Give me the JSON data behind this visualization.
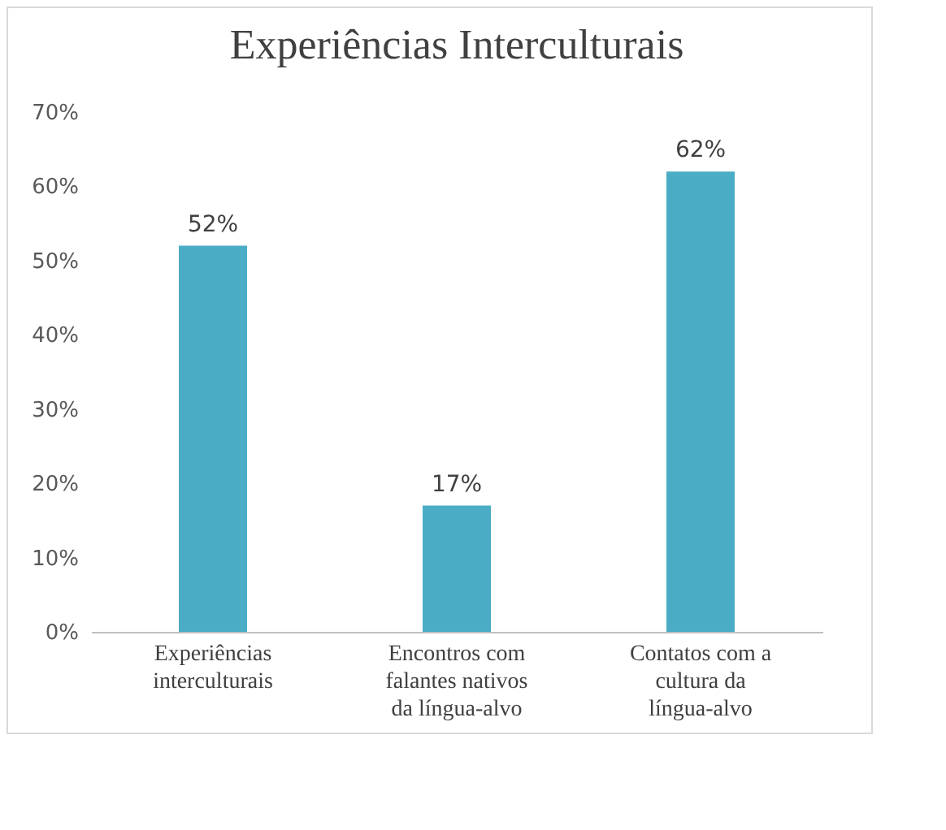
{
  "chart_data": {
    "type": "bar",
    "title": "Experiências Interculturais",
    "categories": [
      "Experiências interculturais",
      "Encontros com falantes nativos da língua-alvo",
      "Contatos com a cultura da língua-alvo"
    ],
    "values": [
      52,
      17,
      62
    ],
    "color": "#4bacc6",
    "value_labels": [
      "52%",
      "17%",
      "62%"
    ],
    "ylim": [
      0,
      70
    ],
    "yticks": [
      {
        "value": 0,
        "label": "0%"
      },
      {
        "value": 10,
        "label": "10%"
      },
      {
        "value": 20,
        "label": "20%"
      },
      {
        "value": 30,
        "label": "30%"
      },
      {
        "value": 40,
        "label": "40%"
      },
      {
        "value": 50,
        "label": "50%"
      },
      {
        "value": 60,
        "label": "60%"
      },
      {
        "value": 70,
        "label": "70%"
      }
    ],
    "grid": false
  }
}
